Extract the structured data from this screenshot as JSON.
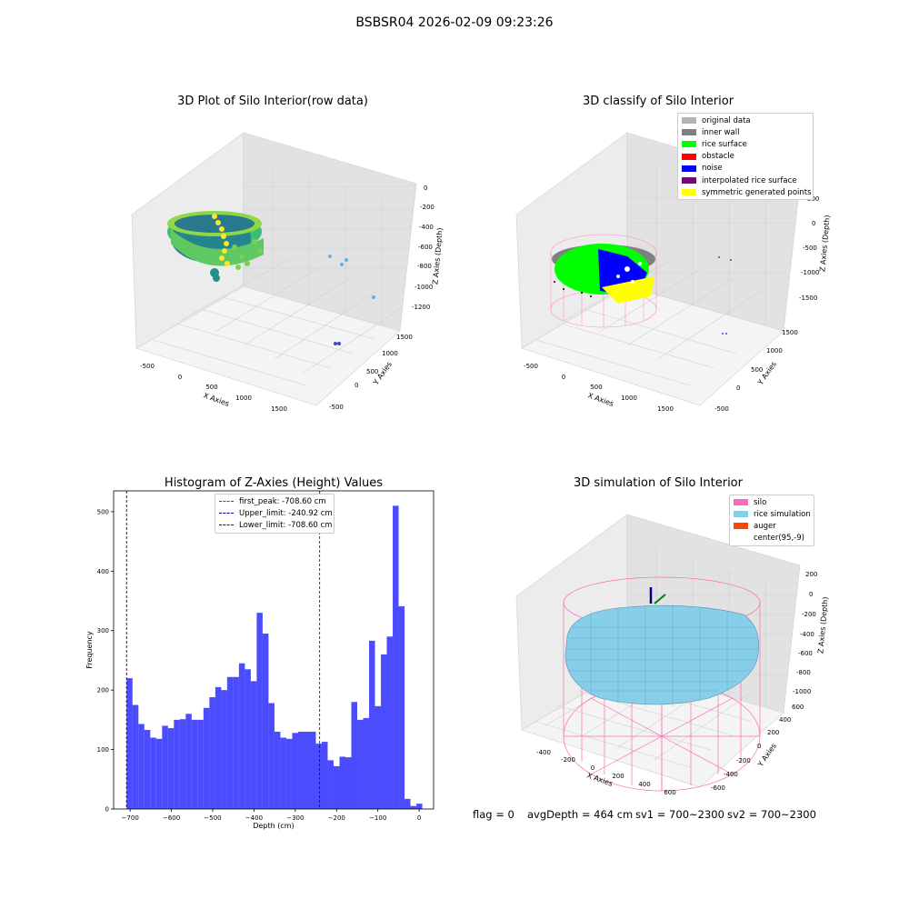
{
  "suptitle": "BSBSR04 2026-02-09 09:23:26",
  "panels": {
    "raw": {
      "title": "3D Plot of Silo Interior(row data)",
      "xlabel": "X Axies",
      "ylabel": "Y Axies",
      "zlabel": "Z Axies (Depth)",
      "xticks": [
        "-500",
        "0",
        "500",
        "1000",
        "1500"
      ],
      "yticks": [
        "-500",
        "0",
        "500",
        "1000",
        "1500"
      ],
      "zticks": [
        "0",
        "-200",
        "-400",
        "-600",
        "-800",
        "-1000",
        "-1200"
      ]
    },
    "classify": {
      "title": "3D classify of Silo Interior",
      "xlabel": "X Axies",
      "ylabel": "Y Axies",
      "zlabel": "Z Axies (Depth)",
      "xticks": [
        "-500",
        "0",
        "500",
        "1000",
        "1500"
      ],
      "yticks": [
        "-500",
        "0",
        "500",
        "1000",
        "1500"
      ],
      "zticks": [
        "500",
        "0",
        "-500",
        "-1000",
        "-1500"
      ],
      "legend": [
        {
          "label": "original data",
          "color": "#b3b3b3"
        },
        {
          "label": "inner wall",
          "color": "#808080"
        },
        {
          "label": "rice surface",
          "color": "#00ff00"
        },
        {
          "label": "obstacle",
          "color": "#ff0000"
        },
        {
          "label": "noise",
          "color": "#0000ff"
        },
        {
          "label": "interpolated rice surface",
          "color": "#800080"
        },
        {
          "label": "symmetric generated points",
          "color": "#ffff00"
        }
      ]
    },
    "simulation": {
      "title": "3D simulation of Silo Interior",
      "xlabel": "X Axies",
      "ylabel": "Y Axies",
      "zlabel": "Z Axies (Depth)",
      "xticks": [
        "-400",
        "-200",
        "0",
        "200",
        "400",
        "600"
      ],
      "yticks": [
        "-600",
        "-400",
        "-200",
        "0",
        "200",
        "400",
        "600"
      ],
      "zticks": [
        "200",
        "0",
        "-200",
        "-400",
        "-600",
        "-800",
        "-1000"
      ],
      "legend": [
        {
          "label": "silo",
          "color": "#ff69b4"
        },
        {
          "label": "rice simulation",
          "color": "#87ceeb"
        },
        {
          "label": "auger",
          "color": "#ff4500"
        },
        {
          "label": "center(95,-9)",
          "color": "#ffffff"
        }
      ]
    }
  },
  "chart_data": {
    "type": "bar",
    "title": "Histogram of Z-Axies (Height) Values",
    "xlabel": "Depth (cm)",
    "ylabel": "Frequency",
    "xlim": [
      -740,
      35
    ],
    "ylim": [
      0,
      535
    ],
    "xticks": [
      -700,
      -600,
      -500,
      -400,
      -300,
      -200,
      -100,
      0
    ],
    "yticks": [
      0,
      100,
      200,
      300,
      400,
      500
    ],
    "bin_start": -708.6,
    "bin_width": 14.325,
    "color": "#0000ff",
    "values": [
      220,
      175,
      143,
      133,
      120,
      118,
      140,
      136,
      150,
      151,
      160,
      150,
      150,
      170,
      188,
      205,
      200,
      222,
      222,
      245,
      235,
      215,
      330,
      295,
      178,
      130,
      120,
      118,
      128,
      130,
      130,
      130,
      110,
      113,
      82,
      72,
      88,
      87,
      180,
      150,
      153,
      283,
      173,
      260,
      290,
      510,
      341,
      17,
      5,
      9
    ],
    "lines": [
      {
        "label": "first_peak: -708.60 cm",
        "x": -708.6,
        "color": "#ff0000"
      },
      {
        "label": "Upper_limit: -240.92 cm",
        "x": -240.92,
        "color": "#00008b"
      },
      {
        "label": "Lower_limit: -708.60 cm",
        "x": -708.6,
        "color": "#0000ff"
      }
    ]
  },
  "footer": {
    "flag": "flag = 0",
    "avg": "avgDepth = 464 cm",
    "sv1": "sv1 = 700~2300",
    "sv2": "sv2 = 700~2300"
  }
}
